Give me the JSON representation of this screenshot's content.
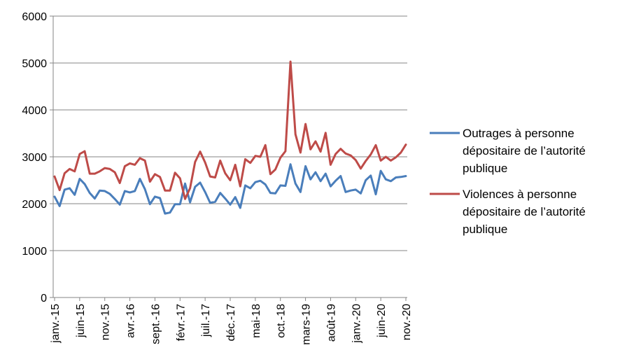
{
  "chart_data": {
    "type": "line",
    "ylim": [
      0,
      6000
    ],
    "yticks": [
      "0",
      "1000",
      "2000",
      "3000",
      "4000",
      "5000",
      "6000"
    ],
    "grid": "horizontal",
    "legend_position": "right",
    "x_tick_labels": [
      {
        "index": 0,
        "label": "janv.-15"
      },
      {
        "index": 5,
        "label": "juin-15"
      },
      {
        "index": 10,
        "label": "nov.-15"
      },
      {
        "index": 15,
        "label": "avr.-16"
      },
      {
        "index": 20,
        "label": "sept.-16"
      },
      {
        "index": 25,
        "label": "févr.-17"
      },
      {
        "index": 30,
        "label": "juil.-17"
      },
      {
        "index": 35,
        "label": "déc.-17"
      },
      {
        "index": 40,
        "label": "mai-18"
      },
      {
        "index": 45,
        "label": "oct.-18"
      },
      {
        "index": 50,
        "label": "mars-19"
      },
      {
        "index": 55,
        "label": "août-19"
      },
      {
        "index": 60,
        "label": "janv.-20"
      },
      {
        "index": 65,
        "label": "juin-20"
      },
      {
        "index": 70,
        "label": "nov.-20"
      }
    ],
    "series": [
      {
        "name": "Outrages à personne dépositaire de l’autorité publique",
        "legend_lines": [
          "Outrages à personne",
          "dépositaire de l’autorité",
          "publique"
        ],
        "color": "#4a7ebb",
        "values": [
          2150,
          1950,
          2300,
          2330,
          2190,
          2530,
          2420,
          2230,
          2110,
          2280,
          2270,
          2210,
          2100,
          1980,
          2270,
          2240,
          2270,
          2530,
          2310,
          1990,
          2150,
          2120,
          1790,
          1810,
          1990,
          1990,
          2430,
          2030,
          2360,
          2450,
          2250,
          2020,
          2040,
          2230,
          2110,
          1980,
          2140,
          1910,
          2390,
          2330,
          2460,
          2490,
          2410,
          2230,
          2220,
          2390,
          2380,
          2840,
          2430,
          2250,
          2800,
          2520,
          2670,
          2480,
          2640,
          2370,
          2490,
          2590,
          2250,
          2280,
          2300,
          2220,
          2500,
          2600,
          2200,
          2700,
          2520,
          2480,
          2560,
          2570,
          2590
        ]
      },
      {
        "name": "Violences à personne dépositaire de l’autorité publique",
        "legend_lines": [
          "Violences à personne",
          "dépositaire de l’autorité",
          "publique"
        ],
        "color": "#be4b48",
        "values": [
          2580,
          2290,
          2650,
          2740,
          2690,
          3060,
          3120,
          2640,
          2640,
          2690,
          2760,
          2740,
          2670,
          2440,
          2800,
          2860,
          2830,
          2970,
          2920,
          2470,
          2630,
          2570,
          2280,
          2280,
          2660,
          2540,
          2100,
          2330,
          2890,
          3110,
          2880,
          2580,
          2560,
          2920,
          2650,
          2500,
          2830,
          2370,
          2950,
          2870,
          3020,
          3000,
          3250,
          2630,
          2730,
          2980,
          3120,
          5030,
          3480,
          3090,
          3700,
          3160,
          3330,
          3110,
          3510,
          2830,
          3060,
          3170,
          3070,
          3030,
          2930,
          2750,
          2910,
          3050,
          3250,
          2920,
          3000,
          2920,
          2990,
          3090,
          3260
        ]
      }
    ]
  }
}
